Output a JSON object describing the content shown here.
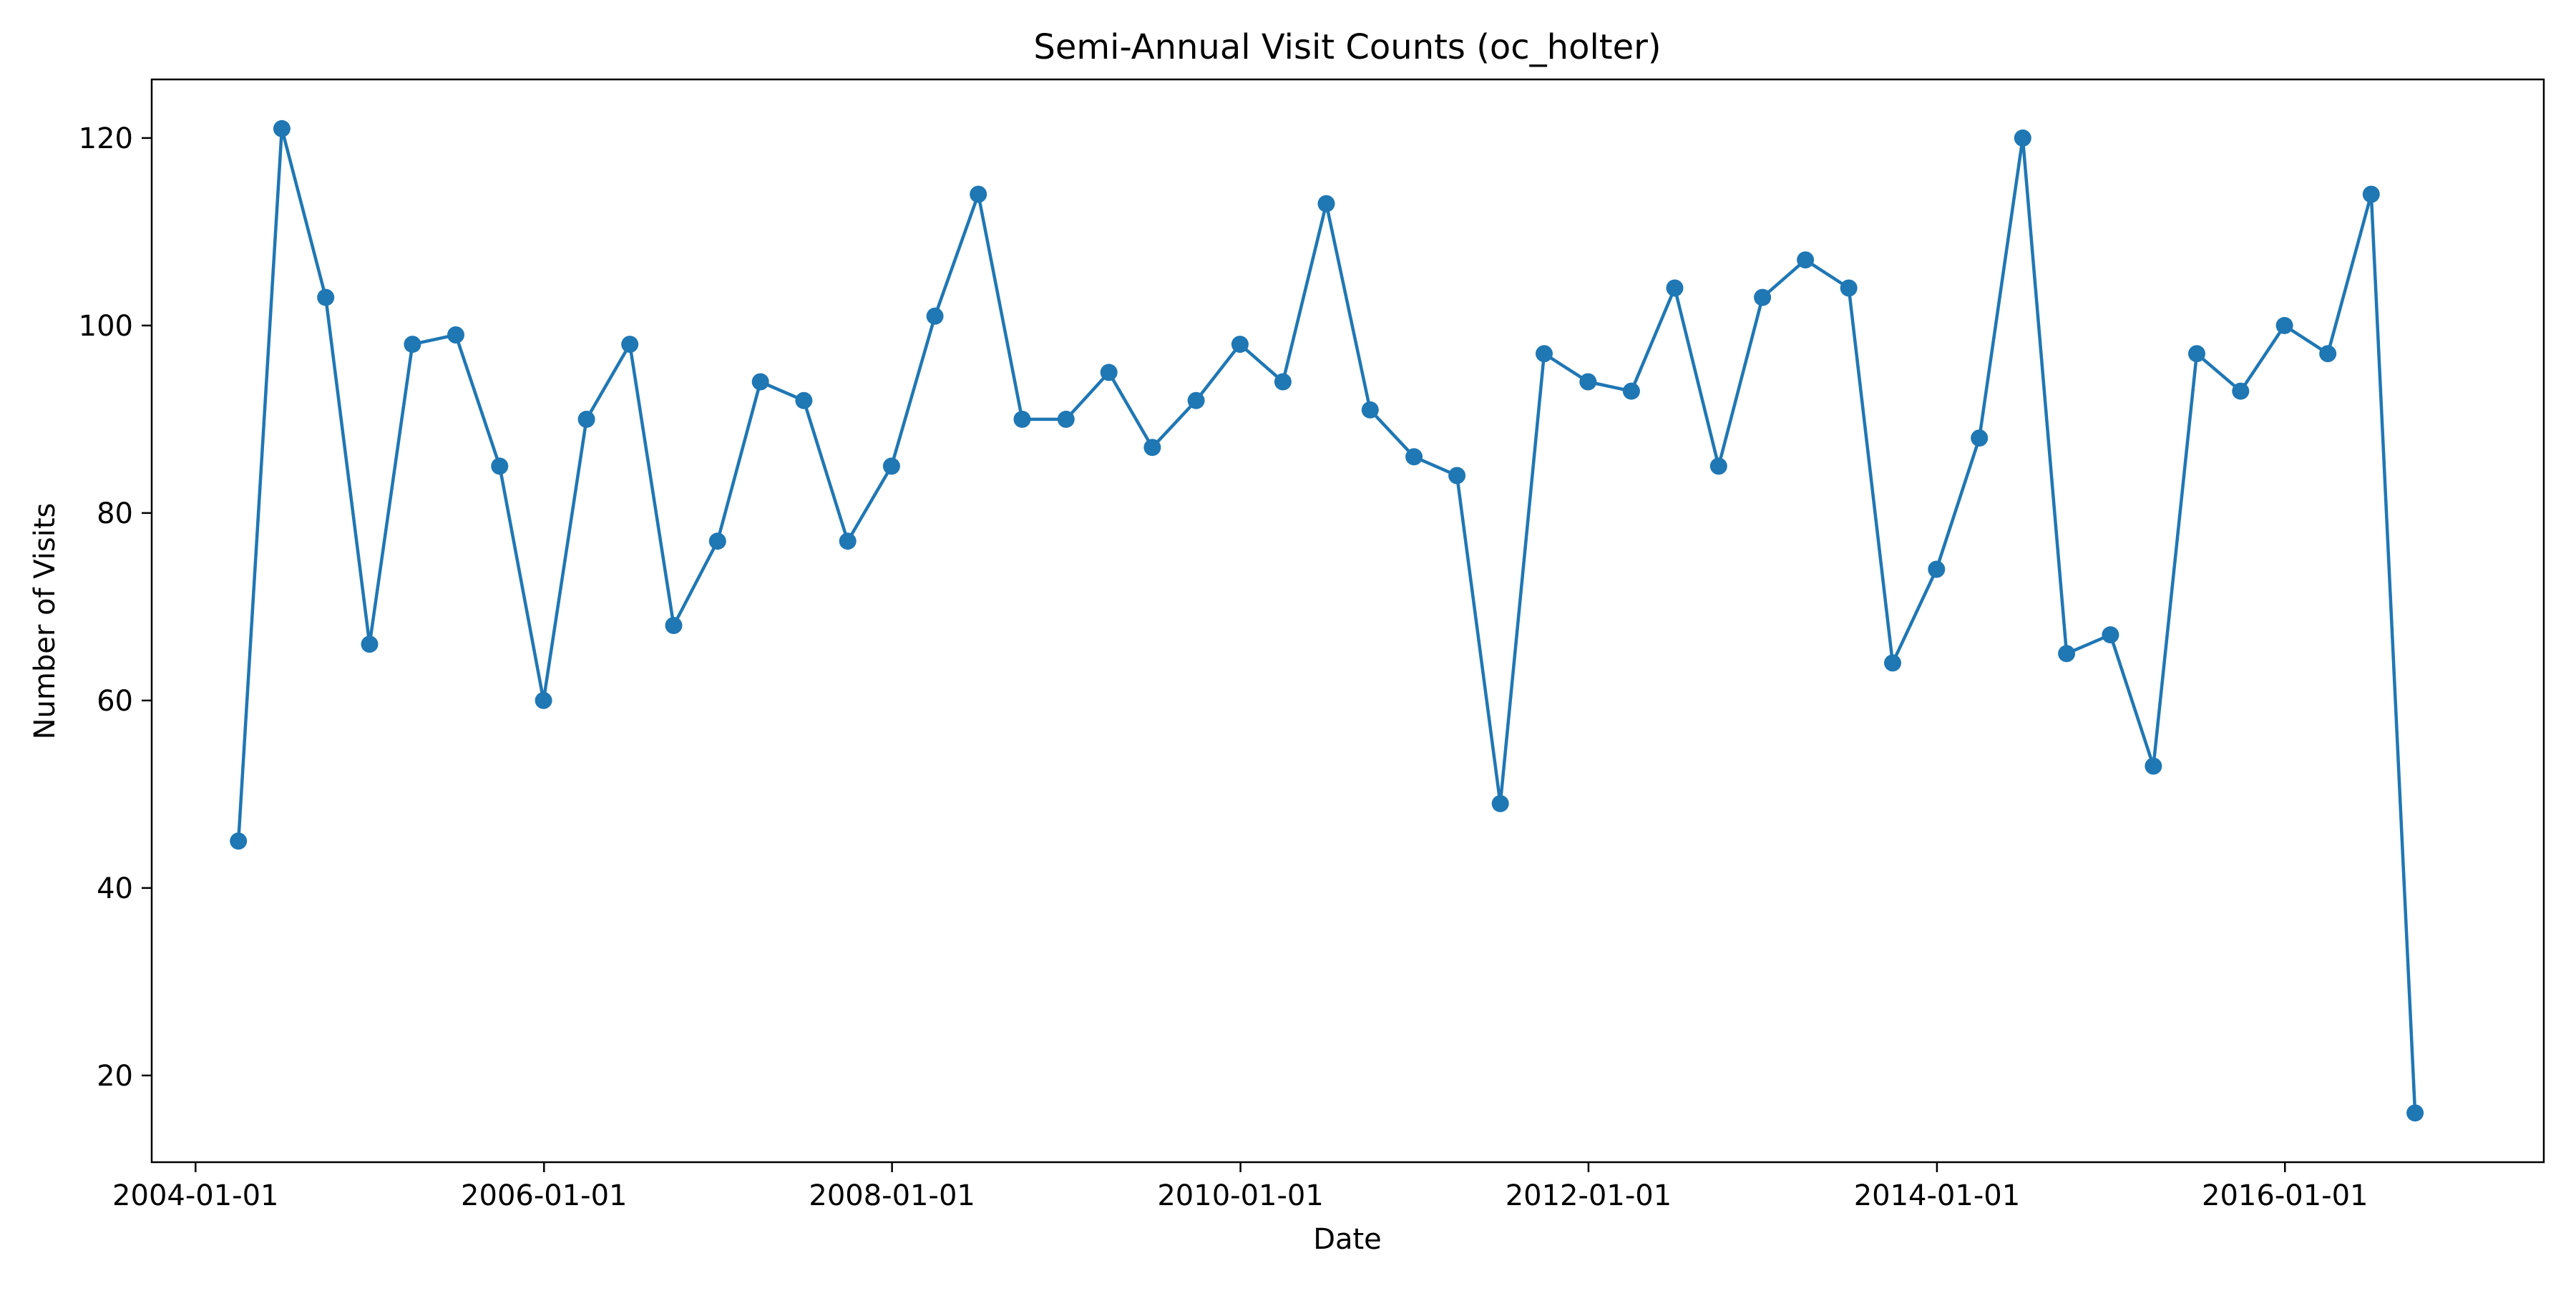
{
  "chart_data": {
    "type": "line",
    "title": "Semi-Annual Visit Counts (oc_holter)",
    "xlabel": "Date",
    "ylabel": "Number of Visits",
    "x_ticks": [
      "2004-01-01",
      "2006-01-01",
      "2008-01-01",
      "2010-01-01",
      "2012-01-01",
      "2014-01-01",
      "2016-01-01"
    ],
    "y_ticks": [
      20,
      40,
      60,
      80,
      100,
      120
    ],
    "xlim": [
      "2003-10-01",
      "2017-06-27"
    ],
    "ylim": [
      10.75,
      126.25
    ],
    "grid": false,
    "marker": "circle",
    "color": "#1f77b4",
    "series": [
      {
        "x": [
          "2004-03-31",
          "2004-06-30",
          "2004-09-30",
          "2004-12-31",
          "2005-03-31",
          "2005-06-30",
          "2005-09-30",
          "2005-12-31",
          "2006-03-31",
          "2006-06-30",
          "2006-09-30",
          "2006-12-31",
          "2007-03-31",
          "2007-06-30",
          "2007-09-30",
          "2007-12-31",
          "2008-03-31",
          "2008-06-30",
          "2008-09-30",
          "2008-12-31",
          "2009-03-31",
          "2009-06-30",
          "2009-09-30",
          "2009-12-31",
          "2010-03-31",
          "2010-06-30",
          "2010-09-30",
          "2010-12-31",
          "2011-03-31",
          "2011-06-30",
          "2011-09-30",
          "2011-12-31",
          "2012-03-31",
          "2012-06-30",
          "2012-09-30",
          "2012-12-31",
          "2013-03-31",
          "2013-06-30",
          "2013-09-30",
          "2013-12-31",
          "2014-03-31",
          "2014-06-30",
          "2014-09-30",
          "2014-12-31",
          "2015-03-31",
          "2015-06-30",
          "2015-09-30",
          "2015-12-31",
          "2016-03-31",
          "2016-06-30",
          "2016-09-30"
        ],
        "values": [
          45,
          121,
          103,
          66,
          98,
          99,
          85,
          60,
          90,
          98,
          68,
          77,
          94,
          92,
          77,
          85,
          101,
          114,
          90,
          90,
          95,
          87,
          92,
          98,
          94,
          113,
          91,
          86,
          84,
          49,
          97,
          94,
          93,
          104,
          85,
          103,
          107,
          104,
          64,
          74,
          88,
          120,
          65,
          67,
          53,
          97,
          93,
          100,
          97,
          114,
          16
        ]
      }
    ]
  }
}
